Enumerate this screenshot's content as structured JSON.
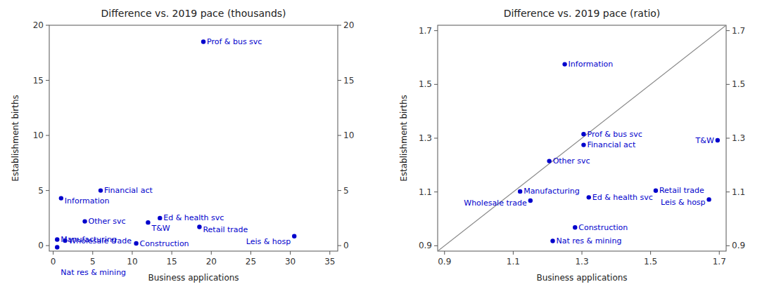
{
  "chart_data": [
    {
      "type": "scatter",
      "title": "Difference vs. 2019 pace (thousands)",
      "xlabel": "Business applications",
      "ylabel": "Establishment births",
      "xlim": [
        -0.5,
        36
      ],
      "ylim": [
        -0.5,
        20
      ],
      "xticks": [
        0,
        5,
        10,
        15,
        20,
        25,
        30,
        35
      ],
      "yticks": [
        0,
        5,
        10,
        15,
        20
      ],
      "y2lim": [
        -0.5,
        20
      ],
      "y2ticks": [
        0,
        5,
        10,
        15,
        20
      ],
      "grid": false,
      "series": [
        {
          "type": "scatter",
          "color": "#0000CC",
          "x": [
            19.0,
            6.0,
            1.0,
            4.0,
            13.5,
            12.0,
            18.5,
            30.5,
            0.5,
            1.5,
            10.5,
            0.5
          ],
          "values": [
            18.5,
            5.0,
            4.3,
            2.2,
            2.5,
            2.1,
            1.7,
            0.85,
            0.55,
            0.45,
            0.2,
            -0.15
          ],
          "labels": [
            "Prof & bus svc",
            "Financial act",
            "Information",
            "Other svc",
            "Ed & health svc",
            "T&W",
            "Retail trade",
            "Leis & hosp",
            "Manufacturing",
            "Wholesale trade",
            "Construction",
            "Nat res & mining"
          ]
        }
      ]
    },
    {
      "type": "scatter",
      "title": "Difference vs. 2019 pace (ratio)",
      "xlabel": "Business applications",
      "ylabel": "Establishment births",
      "xlim": [
        0.88,
        1.72
      ],
      "ylim": [
        0.88,
        1.72
      ],
      "xticks": [
        0.9,
        1.1,
        1.3,
        1.5,
        1.7
      ],
      "yticks": [
        0.9,
        1.1,
        1.3,
        1.5,
        1.7
      ],
      "y2lim": [
        0.88,
        1.72
      ],
      "y2ticks": [
        0.9,
        1.1,
        1.3,
        1.5,
        1.7
      ],
      "grid": false,
      "series": [
        {
          "type": "line",
          "color": "#888888",
          "x": [
            0.88,
            1.72
          ],
          "values": [
            0.88,
            1.72
          ]
        },
        {
          "type": "scatter",
          "color": "#0000CC",
          "x": [
            1.25,
            1.305,
            1.305,
            1.205,
            1.695,
            1.515,
            1.32,
            1.67,
            1.12,
            1.15,
            1.28,
            1.215
          ],
          "values": [
            1.575,
            1.315,
            1.275,
            1.215,
            1.292,
            1.105,
            1.08,
            1.072,
            1.102,
            1.068,
            0.968,
            0.918
          ],
          "labels": [
            "Information",
            "Prof & bus svc",
            "Financial act",
            "Other svc",
            "T&W",
            "Retail trade",
            "Ed & health svc",
            "Leis & hosp",
            "Manufacturing",
            "Wholesale trade",
            "Construction",
            "Nat res & mining"
          ]
        }
      ]
    }
  ]
}
